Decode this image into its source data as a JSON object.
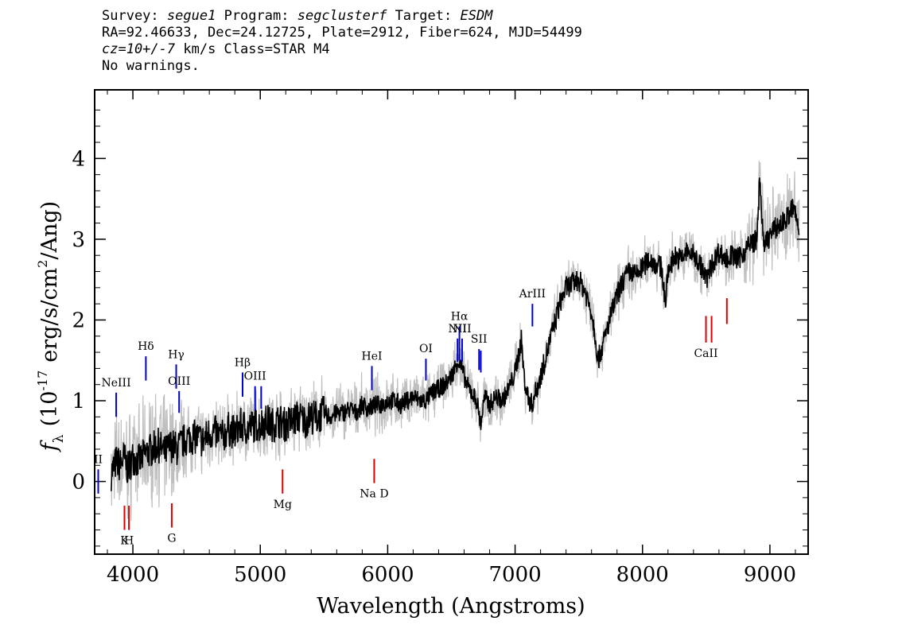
{
  "header": {
    "survey_label": "Survey:",
    "survey": "segue1",
    "program_label": "Program:",
    "program": "segclusterf",
    "target_label": "Target:",
    "target": "ESDM",
    "line2": "RA=92.46633, Dec=24.12725, Plate=2912, Fiber=624, MJD=54499",
    "cz": "cz=10+/-7",
    "cz_rest": "km/s Class=STAR M4",
    "warnings": "No warnings."
  },
  "chart_data": {
    "type": "line",
    "xlabel": "Wavelength (Angstroms)",
    "ylabel_prefix": "f",
    "ylabel_sub": "λ",
    "ylabel_main": "(10",
    "ylabel_exp": "-17",
    "ylabel_unit": "erg/s/cm",
    "ylabel_unit_exp": "2",
    "ylabel_tail": "/Ang)",
    "xlim": [
      3700,
      9300
    ],
    "ylim": [
      -0.9,
      4.85
    ],
    "x_ticks": [
      4000,
      5000,
      6000,
      7000,
      8000,
      9000
    ],
    "y_ticks": [
      0,
      1,
      2,
      3,
      4
    ],
    "x_tick_labels": [
      "4000",
      "5000",
      "6000",
      "7000",
      "8000",
      "9000"
    ],
    "y_tick_labels": [
      "0",
      "1",
      "2",
      "3",
      "4"
    ],
    "grid": false,
    "colors": {
      "flux": "#000000",
      "error": "#bfbfbf",
      "emission": "#0000cc",
      "absorption": "#dd0000"
    },
    "series": [
      {
        "x": [
          3830,
          3870,
          3900,
          3930,
          3960,
          4000,
          4050,
          4100,
          4150,
          4200,
          4250,
          4300,
          4350,
          4400,
          4450,
          4500,
          4550,
          4600,
          4650,
          4700,
          4750,
          4800,
          4850,
          4900,
          4950,
          5000,
          5050,
          5100,
          5150,
          5200,
          5250,
          5300,
          5350,
          5400,
          5450,
          5500,
          5550,
          5600,
          5650,
          5700,
          5750,
          5800,
          5850,
          5900,
          5950,
          6000,
          6050,
          6100,
          6150,
          6200,
          6250,
          6300,
          6350,
          6400,
          6450,
          6500,
          6550,
          6580,
          6620,
          6660,
          6700,
          6730,
          6760,
          6800,
          6850,
          6900,
          6950,
          7000,
          7030,
          7050,
          7070,
          7100,
          7130,
          7160,
          7200,
          7250,
          7300,
          7350,
          7400,
          7450,
          7500,
          7550,
          7600,
          7630,
          7650,
          7700,
          7750,
          7800,
          7850,
          7900,
          7950,
          8000,
          8050,
          8100,
          8150,
          8180,
          8200,
          8250,
          8300,
          8350,
          8400,
          8450,
          8500,
          8550,
          8600,
          8650,
          8700,
          8750,
          8800,
          8850,
          8900,
          8920,
          8950,
          9000,
          9050,
          9100,
          9150,
          9180,
          9200,
          9230
        ],
        "y": [
          0.1,
          0.25,
          0.2,
          0.3,
          0.15,
          0.3,
          0.25,
          0.35,
          0.4,
          0.45,
          0.35,
          0.45,
          0.4,
          0.5,
          0.55,
          0.55,
          0.5,
          0.6,
          0.6,
          0.55,
          0.65,
          0.6,
          0.7,
          0.65,
          0.7,
          0.7,
          0.75,
          0.7,
          0.75,
          0.7,
          0.75,
          0.8,
          0.75,
          0.8,
          0.8,
          0.85,
          0.8,
          0.85,
          0.85,
          0.9,
          0.85,
          0.95,
          0.9,
          0.95,
          0.95,
          1.0,
          1.0,
          0.95,
          1.0,
          1.05,
          1.0,
          1.0,
          1.1,
          1.15,
          1.2,
          1.3,
          1.5,
          1.4,
          1.2,
          1.1,
          1.0,
          0.7,
          1.05,
          0.95,
          1.05,
          1.0,
          1.15,
          1.35,
          1.6,
          1.75,
          1.3,
          1.05,
          0.95,
          1.1,
          1.3,
          1.6,
          1.9,
          2.2,
          2.4,
          2.45,
          2.5,
          2.35,
          2.1,
          1.8,
          1.5,
          1.75,
          2.05,
          2.3,
          2.5,
          2.6,
          2.55,
          2.65,
          2.75,
          2.7,
          2.65,
          2.2,
          2.6,
          2.8,
          2.75,
          2.85,
          2.8,
          2.7,
          2.5,
          2.7,
          2.85,
          2.75,
          2.8,
          2.75,
          2.85,
          2.95,
          3.0,
          3.8,
          2.9,
          3.05,
          3.15,
          3.2,
          3.3,
          3.4,
          3.3,
          3.1
        ]
      }
    ],
    "line_markers": [
      {
        "label": "II",
        "x": 3728,
        "type": "emission",
        "y_low": -0.15,
        "y_high": 0.15
      },
      {
        "label": "NeIII",
        "x": 3869,
        "type": "emission",
        "y_low": 0.8,
        "y_high": 1.1
      },
      {
        "label": "Hδ",
        "x": 4102,
        "type": "emission",
        "y_low": 1.25,
        "y_high": 1.55
      },
      {
        "label": "Hγ",
        "x": 4340,
        "type": "emission",
        "y_low": 1.15,
        "y_high": 1.45
      },
      {
        "label": "OIII",
        "x": 4363,
        "type": "emission",
        "y_low": 0.85,
        "y_high": 1.12
      },
      {
        "label": "Hβ",
        "x": 4861,
        "type": "emission",
        "y_low": 1.05,
        "y_high": 1.35
      },
      {
        "label": "OIII",
        "x": 4959,
        "type": "emission",
        "y_low": 0.88,
        "y_high": 1.18
      },
      {
        "label": "",
        "x": 5007,
        "type": "emission",
        "y_low": 0.9,
        "y_high": 1.18
      },
      {
        "label": "HeI",
        "x": 5876,
        "type": "emission",
        "y_low": 1.13,
        "y_high": 1.43
      },
      {
        "label": "OI",
        "x": 6300,
        "type": "emission",
        "y_low": 1.25,
        "y_high": 1.52
      },
      {
        "label": "NII",
        "x": 6548,
        "type": "emission",
        "y_low": 1.48,
        "y_high": 1.77
      },
      {
        "label": "Hα",
        "x": 6563,
        "type": "emission",
        "y_low": 1.5,
        "y_high": 1.92
      },
      {
        "label": "NII",
        "x": 6584,
        "type": "emission",
        "y_low": 1.48,
        "y_high": 1.77
      },
      {
        "label": "SII",
        "x": 6717,
        "type": "emission",
        "y_low": 1.38,
        "y_high": 1.64
      },
      {
        "label": "",
        "x": 6731,
        "type": "emission",
        "y_low": 1.35,
        "y_high": 1.62
      },
      {
        "label": "ArIII",
        "x": 7136,
        "type": "emission",
        "y_low": 1.92,
        "y_high": 2.2
      },
      {
        "label": "K",
        "x": 3934,
        "type": "absorption",
        "y_low": -0.6,
        "y_high": -0.3
      },
      {
        "label": "H",
        "x": 3969,
        "type": "absorption",
        "y_low": -0.6,
        "y_high": -0.3
      },
      {
        "label": "G",
        "x": 4305,
        "type": "absorption",
        "y_low": -0.57,
        "y_high": -0.27
      },
      {
        "label": "Mg",
        "x": 5175,
        "type": "absorption",
        "y_low": 0.15,
        "y_high": -0.15
      },
      {
        "label": "Na D",
        "x": 5894,
        "type": "absorption",
        "y_low": 0.28,
        "y_high": -0.02
      },
      {
        "label": "CaII",
        "x": 8498,
        "type": "absorption",
        "y_low": 1.72,
        "y_high": 2.05
      },
      {
        "label": "",
        "x": 8542,
        "type": "absorption",
        "y_low": 1.72,
        "y_high": 2.05
      },
      {
        "label": "",
        "x": 8662,
        "type": "absorption",
        "y_low": 1.95,
        "y_high": 2.27
      }
    ]
  }
}
